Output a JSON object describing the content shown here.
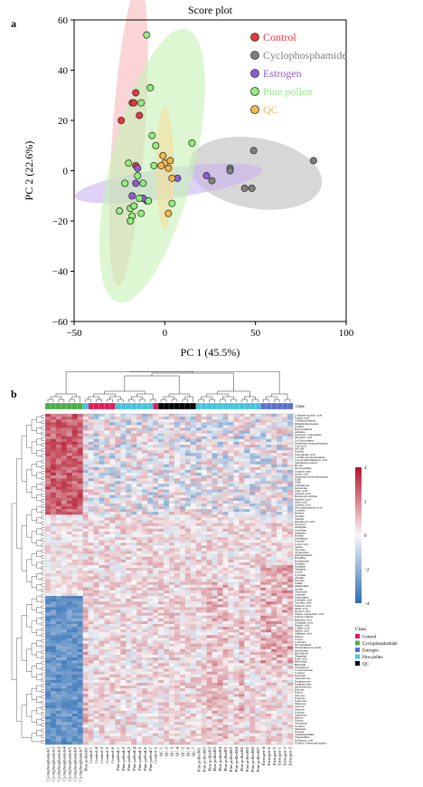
{
  "figure": {
    "panel_a_letter": "a",
    "panel_b_letter": "b"
  },
  "chart_data": [
    {
      "type": "scatter",
      "title": "Score plot",
      "xlabel": "PC 1 (45.5%)",
      "ylabel": "PC 2 (22.6%)",
      "xlim": [
        -50,
        100
      ],
      "ylim": [
        -60,
        60
      ],
      "xticks": [
        "−50",
        "0",
        "50",
        "100"
      ],
      "yticks": [
        "60",
        "40",
        "20",
        "0",
        "−20",
        "−40",
        "−60"
      ],
      "xtick_values": [
        -50,
        0,
        50,
        100
      ],
      "ytick_values": [
        60,
        40,
        20,
        0,
        -20,
        -40,
        -60
      ],
      "grid": false,
      "legend_position": "top-right",
      "series": [
        {
          "name": "Control",
          "color": "#e8363a",
          "ellipse_color": "#f7b8bc",
          "points": [
            [
              -18,
              27
            ],
            [
              -17,
              27
            ],
            [
              -24,
              20
            ],
            [
              -16,
              31
            ],
            [
              -14,
              22
            ],
            [
              -16,
              2
            ]
          ],
          "ellipse": {
            "cx": -20,
            "cy": 14,
            "rx": 9,
            "ry": 60,
            "rotation": 4
          }
        },
        {
          "name": "Cyclophosphamide",
          "color": "#7f7f7f",
          "ellipse_color": "#bdbdbd",
          "points": [
            [
              36,
              1
            ],
            [
              36,
              0
            ],
            [
              49,
              8
            ],
            [
              82,
              4
            ],
            [
              44,
              -7
            ],
            [
              48,
              -7
            ],
            [
              26,
              -4
            ]
          ],
          "ellipse": {
            "cx": 50,
            "cy": -1,
            "rx": 37,
            "ry": 14,
            "rotation": 10
          }
        },
        {
          "name": "Estrogen",
          "color": "#8e5bd6",
          "ellipse_color": "#c9b2ee",
          "points": [
            [
              -16,
              -5
            ],
            [
              -15,
              1
            ],
            [
              -18,
              -10
            ],
            [
              -10,
              -12
            ],
            [
              -12,
              -11
            ],
            [
              7,
              -3
            ],
            [
              23,
              -2
            ]
          ],
          "ellipse": {
            "cx": 2,
            "cy": -5,
            "rx": 52,
            "ry": 6,
            "rotation": -8
          }
        },
        {
          "name": "Pine pollen",
          "color": "#90ef7c",
          "ellipse_color": "#c6f2b6",
          "points": [
            [
              -10,
              54
            ],
            [
              -8,
              33
            ],
            [
              -13,
              27
            ],
            [
              -7,
              14
            ],
            [
              -5,
              10
            ],
            [
              15,
              11
            ],
            [
              -20,
              3
            ],
            [
              -22,
              -5
            ],
            [
              -25,
              -16
            ],
            [
              -19,
              -15
            ],
            [
              -17,
              -14
            ],
            [
              -18,
              -18
            ],
            [
              -19,
              -20
            ],
            [
              -14,
              -11
            ],
            [
              -6,
              2
            ],
            [
              -12,
              -5
            ],
            [
              -15,
              -2
            ],
            [
              -9,
              -12
            ],
            [
              -13,
              -17
            ],
            [
              4,
              -13
            ]
          ],
          "ellipse": {
            "cx": -7,
            "cy": 2,
            "rx": 23,
            "ry": 56,
            "rotation": 14
          }
        },
        {
          "name": "QC",
          "color": "#f5b84a",
          "ellipse_color": "#f7dd9e",
          "points": [
            [
              -1,
              6
            ],
            [
              0,
              3
            ],
            [
              2,
              1
            ],
            [
              -2,
              2
            ],
            [
              3,
              4
            ],
            [
              4,
              -3
            ],
            [
              2,
              -17
            ]
          ],
          "ellipse": {
            "cx": 0,
            "cy": 1,
            "rx": 5,
            "ry": 24,
            "rotation": 0
          }
        }
      ]
    },
    {
      "type": "heatmap",
      "color_scale": {
        "ticks": [
          "4",
          "2",
          "0",
          "−2",
          "−4"
        ],
        "tick_values": [
          4,
          2,
          0,
          -2,
          -4
        ],
        "low_color": "#2d6db5",
        "mid_color": "#f7f7f7",
        "high_color": "#b3142b"
      },
      "class_header": "class",
      "legend_title": "Class",
      "classes": [
        {
          "name": "Control",
          "color": "#e31a59"
        },
        {
          "name": "Cyclophosphamide",
          "color": "#4daf4a"
        },
        {
          "name": "Estrogen",
          "color": "#5b6fd1"
        },
        {
          "name": "Pine pollen",
          "color": "#45c4e0"
        },
        {
          "name": "QC",
          "color": "#000000"
        }
      ],
      "samples": [
        {
          "label": "Cyclophosphamide1",
          "class": "Cyclophosphamide"
        },
        {
          "label": "Cyclophosphamide2",
          "class": "Cyclophosphamide"
        },
        {
          "label": "Cyclophosphamide3",
          "class": "Cyclophosphamide"
        },
        {
          "label": "Cyclophosphamide4",
          "class": "Cyclophosphamide"
        },
        {
          "label": "Cyclophosphamide5",
          "class": "Cyclophosphamide"
        },
        {
          "label": "Cyclophosphamide6",
          "class": "Cyclophosphamide"
        },
        {
          "label": "Cyclophosphamide7",
          "class": "Cyclophosphamide"
        },
        {
          "label": "Pine pollenH1",
          "class": "Pine pollen"
        },
        {
          "label": "Control-1",
          "class": "Control"
        },
        {
          "label": "Control-4",
          "class": "Control"
        },
        {
          "label": "Control-2",
          "class": "Control"
        },
        {
          "label": "Control-5",
          "class": "Control"
        },
        {
          "label": "Control-6",
          "class": "Control"
        },
        {
          "label": "Pine pollenL1",
          "class": "Pine pollen"
        },
        {
          "label": "Pine pollenL3",
          "class": "Pine pollen"
        },
        {
          "label": "Pine pollenL2",
          "class": "Pine pollen"
        },
        {
          "label": "Pine pollenL4",
          "class": "Pine pollen"
        },
        {
          "label": "Pine pollenL5",
          "class": "Pine pollen"
        },
        {
          "label": "Pine pollenL6",
          "class": "Pine pollen"
        },
        {
          "label": "Pine pollenL7",
          "class": "Pine pollen"
        },
        {
          "label": "Control-3",
          "class": "Control"
        },
        {
          "label": "QC-1",
          "class": "QC"
        },
        {
          "label": "QC-2",
          "class": "QC"
        },
        {
          "label": "QC-3",
          "class": "QC"
        },
        {
          "label": "QC-4",
          "class": "QC"
        },
        {
          "label": "QC-5",
          "class": "QC"
        },
        {
          "label": "QC-6",
          "class": "QC"
        },
        {
          "label": "QC-7",
          "class": "QC"
        },
        {
          "label": "Pine pollenM1",
          "class": "Pine pollen"
        },
        {
          "label": "Pine pollenM2",
          "class": "Pine pollen"
        },
        {
          "label": "Pine pollenH2",
          "class": "Pine pollen"
        },
        {
          "label": "Pine pollenH3",
          "class": "Pine pollen"
        },
        {
          "label": "Pine pollenH4",
          "class": "Pine pollen"
        },
        {
          "label": "Pine pollenH5",
          "class": "Pine pollen"
        },
        {
          "label": "Pine pollenM3",
          "class": "Pine pollen"
        },
        {
          "label": "Pine pollenM4",
          "class": "Pine pollen"
        },
        {
          "label": "Pine pollenH6",
          "class": "Pine pollen"
        },
        {
          "label": "Pine pollenM5",
          "class": "Pine pollen"
        },
        {
          "label": "Pine pollenM6",
          "class": "Pine pollen"
        },
        {
          "label": "Pine pollenM7",
          "class": "Pine pollen"
        },
        {
          "label": "Estrogen-4",
          "class": "Estrogen"
        },
        {
          "label": "Estrogen-6",
          "class": "Estrogen"
        },
        {
          "label": "Estrogen-5",
          "class": "Estrogen"
        },
        {
          "label": "Estrogen-1",
          "class": "Estrogen"
        },
        {
          "label": "Estrogen-3",
          "class": "Estrogen"
        },
        {
          "label": "Estrogen-2",
          "class": "Estrogen"
        }
      ],
      "metabolites": [
        "2-Aminooctanoic acid",
        "Valeric acid",
        "3-Methyladenine",
        "Dimethylguanosine",
        "Uridine",
        "Hypoxanthine",
        "Adenine",
        "Xylulose 1-phosphate",
        "Nicotinic acid",
        "D-Glucosamine",
        "Adenosine monophosphate",
        "Uric acid",
        "AICAR",
        "Inosine",
        "Pantothenic acid",
        "Cytidine monophosphate",
        "4-Acetamidobutanoic acid",
        "Tetrahydrocortisol",
        "Biotin",
        "Deoxyuridine",
        "Aspartic acid",
        "Orotic acid",
        "Adenosine monophosphate",
        "GDP",
        "ADP",
        "Glutathione",
        "Isoleucine",
        "Citric acid",
        "Glutaric acid",
        "Hexanoylcarnitine",
        "Palmitic acid",
        "Oleic acid",
        "Linoleic acid",
        "Docosahexaenoic acid",
        "Creatine",
        "Betaine",
        "Choline",
        "Taurine",
        "Phosphoric acid",
        "Glycerol",
        "Ornithine",
        "Citrulline",
        "Arginine",
        "Proline",
        "Glutamine",
        "Leucine",
        "Lactic acid",
        "Serine",
        "Tyrosine",
        "Tryptophan",
        "Phenylalanine",
        "Histidine",
        "Kynurenine",
        "Guanine",
        "Xanthine",
        "Thymine",
        "Uracil",
        "Cytosine",
        "Alanine",
        "Glycine",
        "Valine",
        "Methionine",
        "Lysine",
        "Threonine",
        "Cysteine",
        "Asparagine",
        "Glutamic acid",
        "Succinic acid",
        "Fumaric acid",
        "Malic acid",
        "Pyruvic acid",
        "Indole-3-propionic acid",
        "Indoxyl sulfate",
        "Hippuric acid",
        "Cinnamic acid",
        "Ferulic acid",
        "Caffeic acid",
        "Quinic acid",
        "Shikimic acid",
        "Phenol",
        "Cresol",
        "Catechol",
        "Nicotinamide",
        "Niacinamide N-oxide",
        "Pyridoxine",
        "Riboflavin",
        "Thiamine",
        "Folic acid",
        "Biliverdin",
        "Bilirubin",
        "Cholesterol",
        "Corticosterone",
        "Cortisol",
        "Estradiol",
        "Testosterone",
        "Progesterone",
        "Pregnenolone",
        "Androsterone",
        "Estrone",
        "Estriol",
        "Glucose",
        "Fructose",
        "Galactose",
        "Mannose",
        "Sucrose",
        "Maltose",
        "Lactose",
        "Trehalose",
        "Ribose",
        "Xylose",
        "Arabinose",
        "Sorbitol",
        "Mannitol",
        "Inositol",
        "Trimethylamine",
        "Trigonelline",
        "Isobutyric acid",
        "Uridine 5-monophosphate"
      ]
    }
  ]
}
